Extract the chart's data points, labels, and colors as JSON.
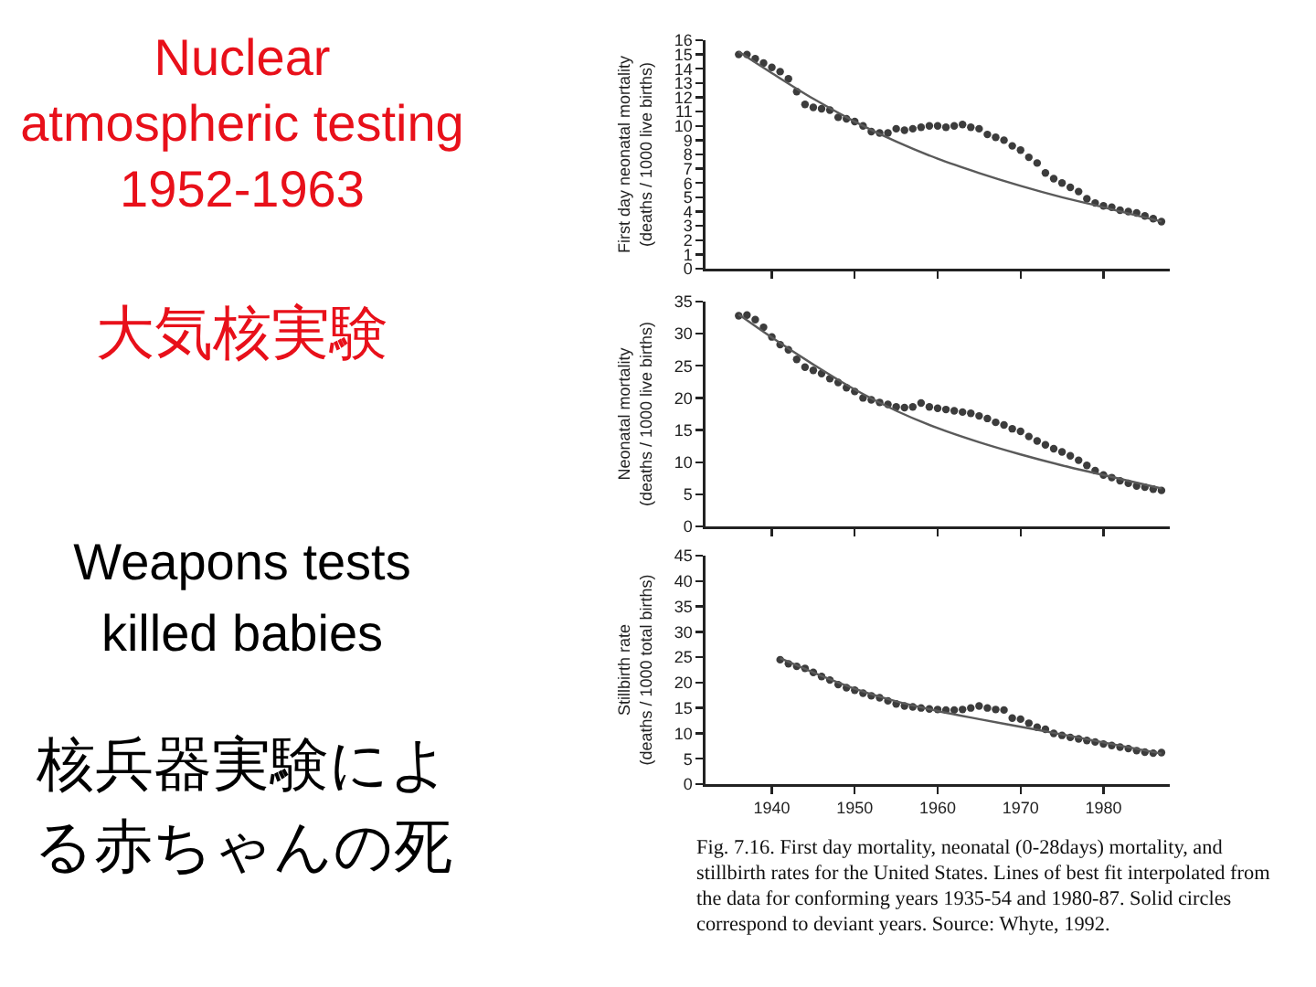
{
  "chart_data": [
    {
      "type": "other",
      "title": "Nuclear\natmospheric testing\n1952-1963",
      "subtitle": "大気核実験",
      "annotations": [
        "Weapons tests\nkilled babies",
        "核兵器実験による赤ちゃんの死"
      ]
    },
    {
      "type": "scatter",
      "ylabel": "First day neonatal mortality\n(deaths / 1000 live births)",
      "xlim": [
        1932,
        1988
      ],
      "xticks": [
        {
          "value": 1940,
          "label": null
        },
        {
          "value": 1950,
          "label": null
        },
        {
          "value": 1960,
          "label": null
        },
        {
          "value": 1970,
          "label": null
        },
        {
          "value": 1980,
          "label": null
        }
      ],
      "ylim": [
        0,
        16
      ],
      "yticks": [
        0,
        1,
        2,
        3,
        4,
        5,
        6,
        7,
        8,
        9,
        10,
        11,
        12,
        13,
        14,
        15,
        16
      ],
      "tick_labels": "y",
      "series": [
        {
          "color": "#3c3c3c",
          "marker": "circle",
          "x": [
            1936,
            1937,
            1938,
            1939,
            1940,
            1941,
            1942,
            1943,
            1944,
            1945,
            1946,
            1947,
            1948,
            1949,
            1950,
            1951,
            1952,
            1953,
            1954,
            1955,
            1956,
            1957,
            1958,
            1959,
            1960,
            1961,
            1962,
            1963,
            1964,
            1965,
            1966,
            1967,
            1968,
            1969,
            1970,
            1971,
            1972,
            1973,
            1974,
            1975,
            1976,
            1977,
            1978,
            1979,
            1980,
            1981,
            1982,
            1983,
            1984,
            1985,
            1986,
            1987
          ],
          "values": [
            15.0,
            15.0,
            14.7,
            14.4,
            14.1,
            13.8,
            13.3,
            12.4,
            11.5,
            11.3,
            11.2,
            11.1,
            10.6,
            10.5,
            10.3,
            10.0,
            9.6,
            9.5,
            9.5,
            9.8,
            9.7,
            9.8,
            9.9,
            10.0,
            10.0,
            9.9,
            10.0,
            10.1,
            9.9,
            9.8,
            9.4,
            9.2,
            9.0,
            8.6,
            8.3,
            7.8,
            7.4,
            6.7,
            6.3,
            6.0,
            5.7,
            5.4,
            4.9,
            4.6,
            4.4,
            4.3,
            4.1,
            4.0,
            3.9,
            3.7,
            3.5,
            3.3
          ]
        },
        {
          "type": "line",
          "color": "#5a5a5a",
          "x": [
            1936,
            1940,
            1945,
            1950,
            1955,
            1960,
            1965,
            1970,
            1975,
            1980,
            1987
          ],
          "values": [
            15.2,
            13.7,
            11.9,
            10.3,
            8.9,
            7.7,
            6.7,
            5.8,
            5.0,
            4.3,
            3.3
          ]
        }
      ]
    },
    {
      "type": "scatter",
      "ylabel": "Neonatal mortality\n(deaths / 1000 live births)",
      "xlim": [
        1932,
        1988
      ],
      "xticks": [
        {
          "value": 1940,
          "label": null
        },
        {
          "value": 1950,
          "label": null
        },
        {
          "value": 1960,
          "label": null
        },
        {
          "value": 1970,
          "label": null
        },
        {
          "value": 1980,
          "label": null
        }
      ],
      "ylim": [
        0,
        35
      ],
      "yticks": [
        0,
        5,
        10,
        15,
        20,
        25,
        30,
        35
      ],
      "tick_labels": "y",
      "series": [
        {
          "color": "#3c3c3c",
          "marker": "circle",
          "x": [
            1936,
            1937,
            1938,
            1939,
            1940,
            1941,
            1942,
            1943,
            1944,
            1945,
            1946,
            1947,
            1948,
            1949,
            1950,
            1951,
            1952,
            1953,
            1954,
            1955,
            1956,
            1957,
            1958,
            1959,
            1960,
            1961,
            1962,
            1963,
            1964,
            1965,
            1966,
            1967,
            1968,
            1969,
            1970,
            1971,
            1972,
            1973,
            1974,
            1975,
            1976,
            1977,
            1978,
            1979,
            1980,
            1981,
            1982,
            1983,
            1984,
            1985,
            1986,
            1987
          ],
          "values": [
            32.8,
            32.9,
            32.2,
            31.0,
            29.5,
            28.3,
            27.5,
            26.0,
            24.8,
            24.3,
            23.8,
            23.0,
            22.4,
            21.6,
            21.0,
            20.0,
            19.7,
            19.3,
            19.0,
            18.6,
            18.5,
            18.6,
            19.2,
            18.6,
            18.4,
            18.2,
            18.0,
            17.8,
            17.6,
            17.2,
            16.8,
            16.2,
            15.8,
            15.2,
            14.8,
            14.0,
            13.3,
            12.7,
            12.1,
            11.6,
            11.0,
            10.3,
            9.5,
            8.7,
            8.0,
            7.6,
            7.1,
            6.7,
            6.3,
            6.1,
            5.8,
            5.6
          ]
        },
        {
          "type": "line",
          "color": "#5a5a5a",
          "x": [
            1936,
            1940,
            1945,
            1950,
            1955,
            1960,
            1965,
            1970,
            1975,
            1980,
            1987
          ],
          "values": [
            33.0,
            29.4,
            25.2,
            21.3,
            18.0,
            15.3,
            13.1,
            11.2,
            9.5,
            8.0,
            5.9
          ]
        }
      ]
    },
    {
      "type": "scatter",
      "ylabel": "Stillbirth rate\n(deaths / 1000 total births)",
      "xlim": [
        1932,
        1988
      ],
      "xticks": [
        1940,
        1950,
        1960,
        1970,
        1980
      ],
      "ylim": [
        0,
        45
      ],
      "yticks": [
        0,
        5,
        10,
        15,
        20,
        25,
        30,
        35,
        40,
        45
      ],
      "annotations": [
        "Fig. 7.16. First day mortality, neonatal (0-28days) mortality, and stillbirth rates for the United States. Lines of best fit interpolated from the data for conforming years 1935-54 and 1980-87. Solid circles correspond to deviant years. Source: Whyte, 1992."
      ],
      "series": [
        {
          "color": "#3c3c3c",
          "marker": "circle",
          "x": [
            1941,
            1942,
            1943,
            1944,
            1945,
            1946,
            1947,
            1948,
            1949,
            1950,
            1951,
            1952,
            1953,
            1954,
            1955,
            1956,
            1957,
            1958,
            1959,
            1960,
            1961,
            1962,
            1963,
            1964,
            1965,
            1966,
            1967,
            1968,
            1969,
            1970,
            1971,
            1972,
            1973,
            1974,
            1975,
            1976,
            1977,
            1978,
            1979,
            1980,
            1981,
            1982,
            1983,
            1984,
            1985,
            1986,
            1987
          ],
          "values": [
            24.5,
            23.7,
            23.2,
            22.8,
            22.0,
            21.2,
            20.5,
            19.6,
            19.0,
            18.5,
            17.9,
            17.4,
            17.0,
            16.4,
            15.8,
            15.4,
            15.2,
            15.0,
            14.8,
            14.7,
            14.6,
            14.6,
            14.7,
            15.0,
            15.4,
            15.0,
            14.7,
            14.6,
            13.0,
            12.8,
            12.0,
            11.2,
            10.8,
            10.0,
            9.6,
            9.2,
            8.9,
            8.6,
            8.3,
            7.9,
            7.6,
            7.3,
            7.0,
            6.6,
            6.3,
            6.1,
            6.2
          ]
        },
        {
          "type": "line",
          "color": "#5a5a5a",
          "x": [
            1941,
            1945,
            1950,
            1955,
            1960,
            1965,
            1970,
            1975,
            1980,
            1987
          ],
          "values": [
            24.8,
            22.0,
            18.8,
            16.3,
            14.4,
            12.8,
            11.3,
            9.8,
            8.2,
            6.0
          ]
        }
      ]
    }
  ]
}
